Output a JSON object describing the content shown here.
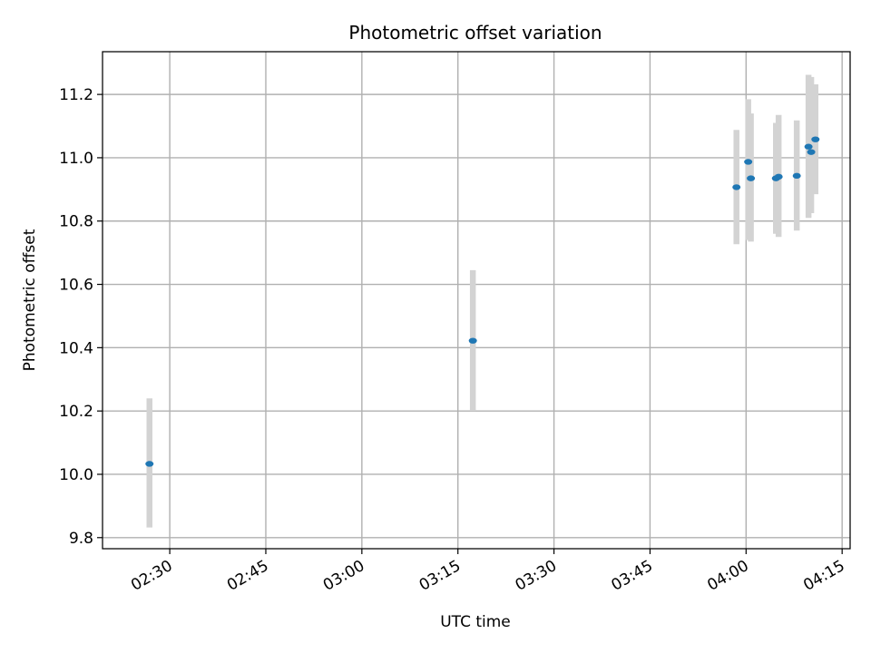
{
  "chart_data": {
    "type": "scatter",
    "title": "Photometric offset variation",
    "xlabel": "UTC time",
    "ylabel": "Photometric offset",
    "xlim": [
      "02:19:30",
      "04:16:15"
    ],
    "ylim": [
      9.765,
      11.335
    ],
    "grid": true,
    "x_ticks": [
      "02:30",
      "02:45",
      "03:00",
      "03:15",
      "03:30",
      "03:45",
      "04:00",
      "04:15"
    ],
    "y_ticks": [
      "9.8",
      "10.0",
      "10.2",
      "10.4",
      "10.6",
      "10.8",
      "11.0",
      "11.2"
    ],
    "points": [
      {
        "time": "02:26:50",
        "offset": 10.033,
        "err_low": 9.832,
        "err_high": 10.24
      },
      {
        "time": "03:17:20",
        "offset": 10.422,
        "err_low": 10.2,
        "err_high": 10.645
      },
      {
        "time": "03:58:30",
        "offset": 10.907,
        "err_low": 10.727,
        "err_high": 11.088
      },
      {
        "time": "04:00:20",
        "offset": 10.987,
        "err_low": 10.74,
        "err_high": 11.185
      },
      {
        "time": "04:00:45",
        "offset": 10.935,
        "err_low": 10.735,
        "err_high": 11.14
      },
      {
        "time": "04:04:40",
        "offset": 10.935,
        "err_low": 10.76,
        "err_high": 11.11
      },
      {
        "time": "04:05:05",
        "offset": 10.94,
        "err_low": 10.75,
        "err_high": 11.135
      },
      {
        "time": "04:07:55",
        "offset": 10.943,
        "err_low": 10.77,
        "err_high": 11.118
      },
      {
        "time": "04:09:45",
        "offset": 11.035,
        "err_low": 10.81,
        "err_high": 11.262
      },
      {
        "time": "04:10:10",
        "offset": 11.018,
        "err_low": 10.825,
        "err_high": 11.255
      },
      {
        "time": "04:10:50",
        "offset": 11.058,
        "err_low": 10.885,
        "err_high": 11.232
      }
    ],
    "point_color": "#1f77b4",
    "error_bar_color": "#d3d3d3",
    "grid_color": "#b0b0b0"
  }
}
